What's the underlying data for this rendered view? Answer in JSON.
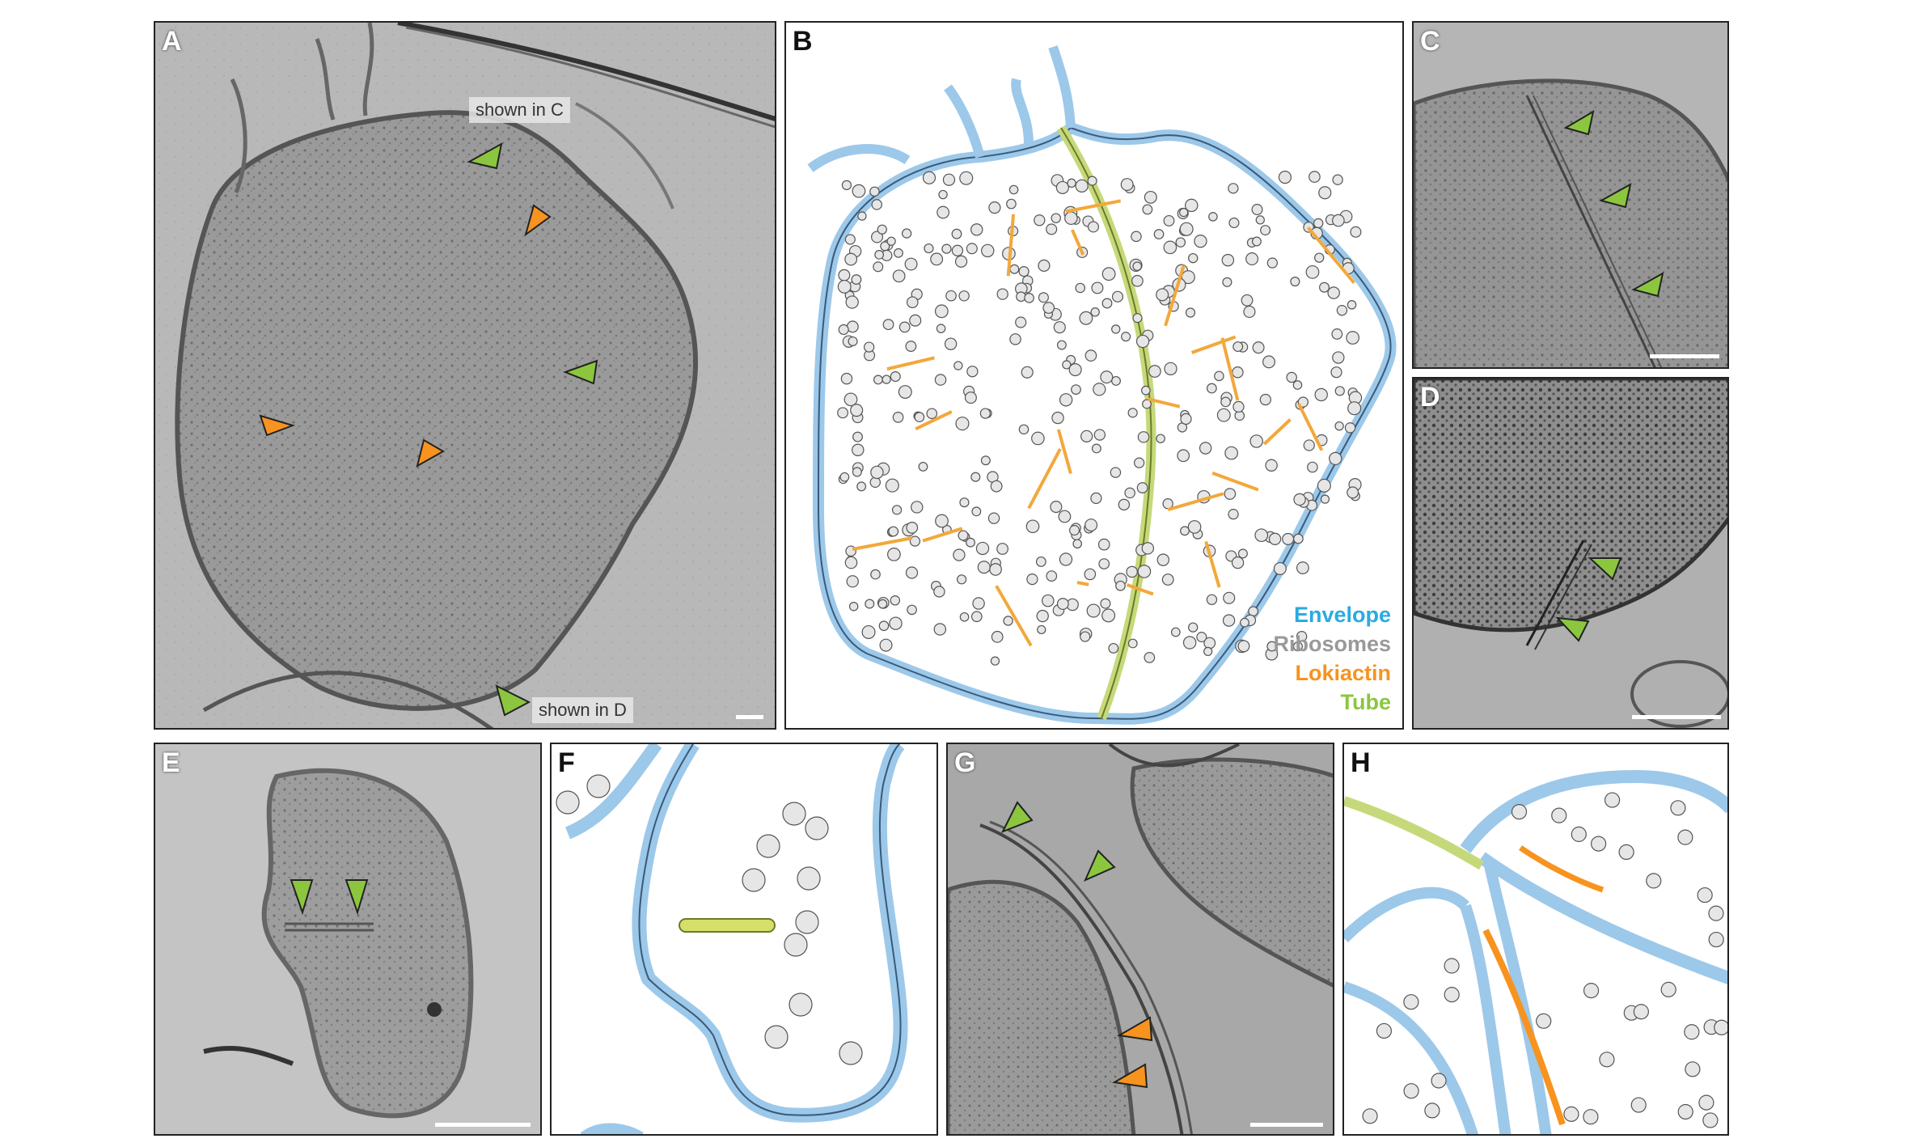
{
  "panels": {
    "A": {
      "label": "A",
      "tag_c": "shown in C",
      "tag_d": "shown in D"
    },
    "B": {
      "label": "B"
    },
    "C": {
      "label": "C"
    },
    "D": {
      "label": "D"
    },
    "E": {
      "label": "E"
    },
    "F": {
      "label": "F"
    },
    "G": {
      "label": "G"
    },
    "H": {
      "label": "H"
    }
  },
  "legend": {
    "envelope": "Envelope",
    "ribosomes": "Ribosomes",
    "lokiactin": "Lokiactin",
    "tube": "Tube"
  },
  "colors": {
    "envelope": "#29abe2",
    "ribosomes": "#999999",
    "lokiactin": "#f7931e",
    "tube": "#8cc63f",
    "arrow_green": "#8cc63f",
    "arrow_orange": "#f7931e"
  }
}
